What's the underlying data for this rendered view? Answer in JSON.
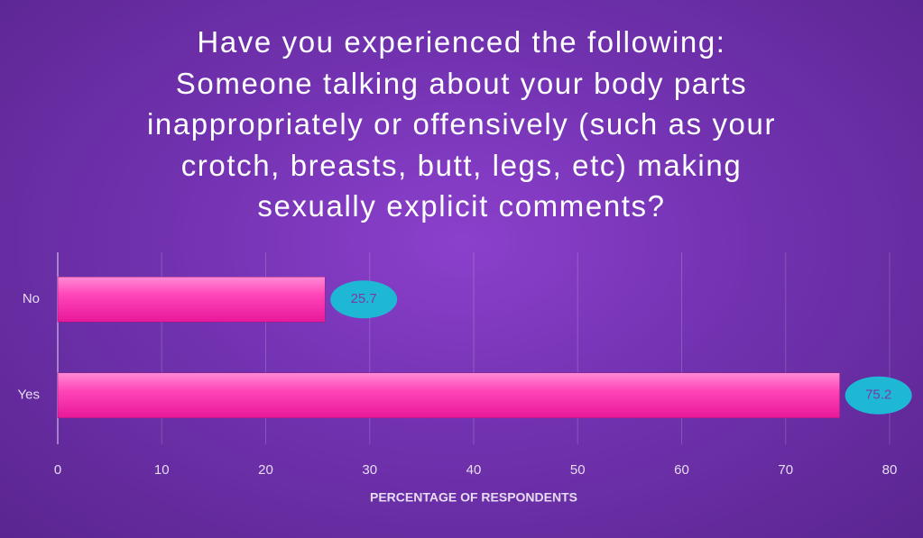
{
  "chart_data": {
    "type": "bar",
    "orientation": "horizontal",
    "title": "Have you experienced the following:\nSomeone talking about your body parts\ninappropriately or offensively (such as your\ncrotch, breasts, butt, legs, etc) making\nsexually explicit comments?",
    "x_label": "PERCENTAGE OF RESPONDENTS",
    "categories": [
      "No",
      "Yes"
    ],
    "values": [
      25.7,
      75.2
    ],
    "color": "#ff3fb4",
    "label_color": "#1fb8d4",
    "xlim": [
      0,
      80
    ],
    "xticks": [
      0,
      10,
      20,
      30,
      40,
      50,
      60,
      70,
      80
    ],
    "grid": true
  }
}
